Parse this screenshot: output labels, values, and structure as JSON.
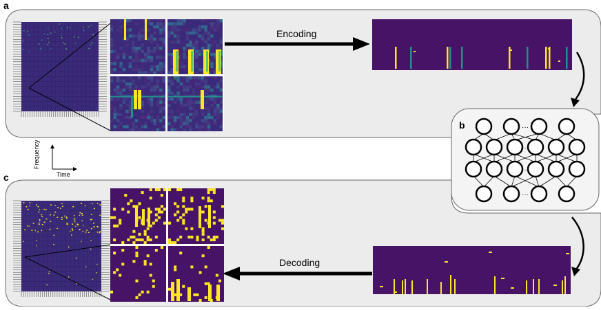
{
  "labels": {
    "a": "a",
    "b": "b",
    "c": "c",
    "encoding": "Encoding",
    "decoding": "Decoding",
    "frequency": "Frequency",
    "time": "Time",
    "ellipsis": "···"
  },
  "colors": {
    "panel_bg": "#ececec",
    "panel_border": "#666666",
    "matrix_bg": "#3b2a79",
    "matrix_dark": "#440154",
    "teal": "#21918c",
    "yellow": "#fde725",
    "green": "#5ec962",
    "arrow": "#000000"
  },
  "network": {
    "layers": [
      4,
      6,
      6,
      4
    ]
  }
}
